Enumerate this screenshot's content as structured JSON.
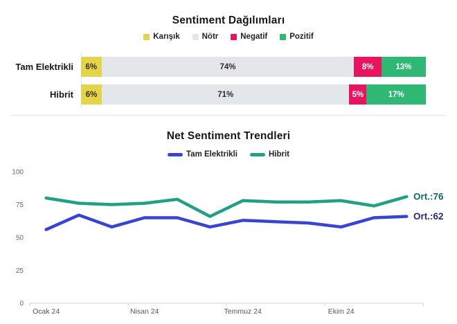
{
  "chart_data": [
    {
      "type": "bar",
      "orientation": "horizontal",
      "stacked": true,
      "title": "Sentiment Dağılımları",
      "categories": [
        "Tam Elektrikli",
        "Hibrit"
      ],
      "series": [
        {
          "name": "Karışık",
          "color": "#e4d44a",
          "label_text_color": "#33301a",
          "values": [
            6,
            6
          ],
          "labels": [
            "6%",
            "6%"
          ]
        },
        {
          "name": "Nötr",
          "color": "#e4e7ea",
          "label_text_color": "#2b2b2b",
          "values": [
            74,
            71
          ],
          "labels": [
            "74%",
            "71%"
          ]
        },
        {
          "name": "Negatif",
          "color": "#e9145e",
          "label_text_color": "#ffffff",
          "values": [
            8,
            5
          ],
          "labels": [
            "8%",
            "5%"
          ]
        },
        {
          "name": "Pozitif",
          "color": "#2eb874",
          "label_text_color": "#ffffff",
          "values": [
            13,
            17
          ],
          "labels": [
            "13%",
            "17%"
          ]
        }
      ],
      "value_suffix": "%",
      "legend_position": "top"
    },
    {
      "type": "line",
      "title": "Net Sentiment Trendleri",
      "x_tick_labels": [
        "Ocak 24",
        "Nisan 24",
        "Temmuz 24",
        "Ekim 24"
      ],
      "yticks": [
        0,
        25,
        50,
        75,
        100
      ],
      "ylim": [
        0,
        100
      ],
      "grid": false,
      "legend_position": "top",
      "series": [
        {
          "name": "Tam Elektrikli",
          "color": "#3845d4",
          "values": [
            56,
            67,
            58,
            65,
            65,
            58,
            63,
            62,
            61,
            58,
            65,
            66
          ],
          "avg_label": "Ort.:62",
          "avg_label_color": "#262b6e"
        },
        {
          "name": "Hibrit",
          "color": "#22a085",
          "values": [
            80,
            76,
            75,
            76,
            79,
            66,
            78,
            77,
            77,
            78,
            74,
            81
          ],
          "avg_label": "Ort.:76",
          "avg_label_color": "#14695d"
        }
      ]
    }
  ]
}
